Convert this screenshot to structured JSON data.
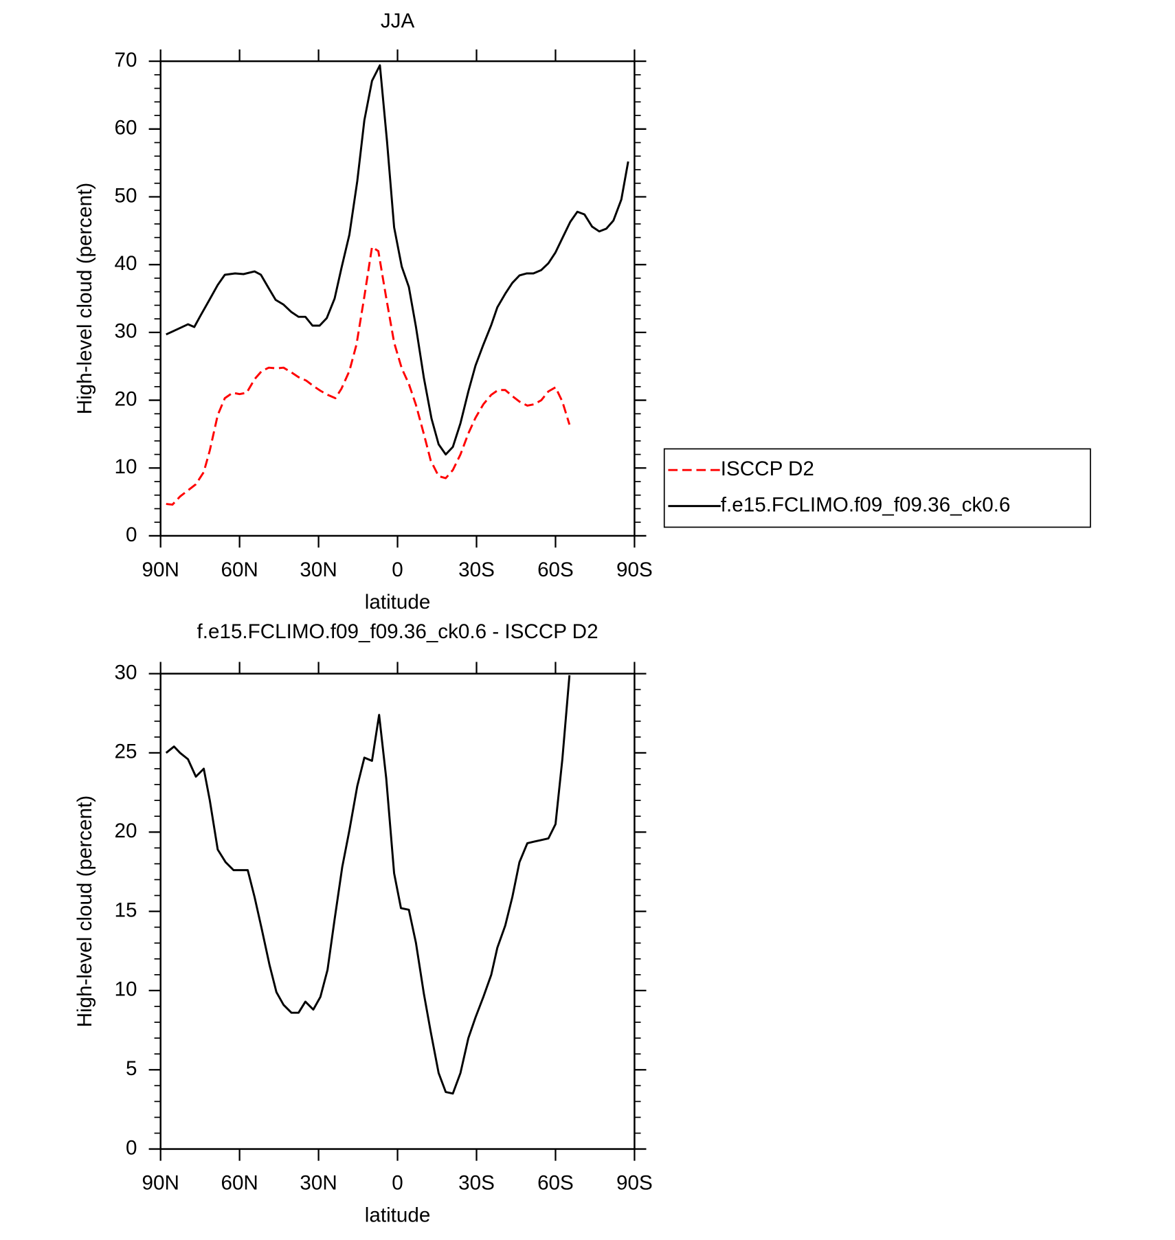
{
  "chart_data": [
    {
      "type": "line",
      "title": "JJA",
      "x_label": "latitude",
      "y_label": "High-level cloud (percent)",
      "xlim": [
        90,
        -90
      ],
      "xticks": [
        {
          "value": 90,
          "label": "90N"
        },
        {
          "value": 60,
          "label": "60N"
        },
        {
          "value": 30,
          "label": "30N"
        },
        0,
        {
          "value": -30,
          "label": "30S"
        },
        {
          "value": -60,
          "label": "60S"
        },
        {
          "value": -90,
          "label": "90S"
        }
      ],
      "ylim": [
        0,
        70
      ],
      "yticks": [
        0,
        10,
        20,
        30,
        40,
        50,
        60,
        70
      ],
      "yminor": 2,
      "legend": "right",
      "series": [
        {
          "name": "ISCCP D2",
          "color": "#ff0000",
          "dash": true,
          "x": [
            87.9,
            85.5,
            82.6,
            79.6,
            76.6,
            73.6,
            71.3,
            68.3,
            65.6,
            62.6,
            60.0,
            57.3,
            54.3,
            51.6,
            48.9,
            46.0,
            43.3,
            40.3,
            37.6,
            34.7,
            32.0,
            29.3,
            26.6,
            23.6,
            21.3,
            18.3,
            15.6,
            12.6,
            9.7,
            7.3,
            4.3,
            1.3,
            -1.6,
            -4.3,
            -7.0,
            -10.0,
            -12.6,
            -15.6,
            -18.3,
            -21.0,
            -23.9,
            -26.9,
            -29.6,
            -32.6,
            -35.6,
            -38.2,
            -40.9,
            -43.6,
            -46.3,
            -49.3,
            -51.9,
            -54.6,
            -57.3,
            -60.0,
            -62.6,
            -65.3
          ],
          "values": [
            4.7,
            4.6,
            5.8,
            6.7,
            7.6,
            9.4,
            12.6,
            17.8,
            20.3,
            21.1,
            20.9,
            21.1,
            23.1,
            24.3,
            24.8,
            24.7,
            24.8,
            24.1,
            23.4,
            22.9,
            22.1,
            21.4,
            20.8,
            20.3,
            21.7,
            24.3,
            28.2,
            35.3,
            42.6,
            42.0,
            35.1,
            28.5,
            24.7,
            22.4,
            19.3,
            15.0,
            11.1,
            8.8,
            8.5,
            9.7,
            12.0,
            15.1,
            17.4,
            19.4,
            20.8,
            21.5,
            21.5,
            20.6,
            19.8,
            19.2,
            19.4,
            20.0,
            21.3,
            21.9,
            19.8,
            16.4
          ]
        },
        {
          "name": "f.e15.FCLIMO.f09_f09.36_ck0.6",
          "color": "#000000",
          "dash": false,
          "x": [
            87.9,
            84.0,
            79.6,
            77.2,
            74.8,
            71.6,
            68.3,
            65.6,
            61.7,
            58.5,
            54.3,
            51.9,
            48.9,
            46.3,
            43.3,
            40.3,
            37.6,
            35.0,
            32.3,
            29.6,
            26.9,
            23.9,
            21.3,
            18.3,
            15.3,
            12.6,
            9.7,
            6.7,
            4.0,
            1.3,
            -1.6,
            -4.3,
            -7.0,
            -10.0,
            -12.9,
            -15.6,
            -18.3,
            -21.0,
            -23.9,
            -26.9,
            -29.6,
            -32.6,
            -35.6,
            -37.9,
            -40.9,
            -43.6,
            -46.3,
            -49.0,
            -51.6,
            -54.6,
            -57.3,
            -60.0,
            -62.6,
            -65.6,
            -68.3,
            -71.0,
            -73.9,
            -76.6,
            -79.3,
            -82.0,
            -85.0,
            -87.6
          ],
          "values": [
            29.7,
            30.4,
            31.2,
            30.8,
            32.5,
            34.7,
            37.0,
            38.5,
            38.7,
            38.6,
            39.0,
            38.5,
            36.5,
            34.8,
            34.1,
            33.0,
            32.3,
            32.3,
            31.0,
            31.0,
            32.1,
            35.0,
            39.5,
            44.4,
            52.3,
            61.3,
            67.1,
            69.4,
            58.2,
            45.5,
            39.7,
            36.7,
            30.8,
            23.3,
            17.3,
            13.5,
            12.0,
            13.1,
            16.6,
            21.3,
            25.1,
            28.2,
            31.1,
            33.7,
            35.7,
            37.3,
            38.4,
            38.7,
            38.7,
            39.2,
            40.2,
            41.8,
            43.9,
            46.3,
            47.8,
            47.4,
            45.6,
            44.9,
            45.3,
            46.5,
            49.6,
            55.2
          ]
        }
      ]
    },
    {
      "type": "line",
      "title": "f.e15.FCLIMO.f09_f09.36_ck0.6 - ISCCP D2",
      "x_label": "latitude",
      "y_label": "High-level cloud (percent)",
      "xlim": [
        90,
        -90
      ],
      "xticks": [
        {
          "value": 90,
          "label": "90N"
        },
        {
          "value": 60,
          "label": "60N"
        },
        {
          "value": 30,
          "label": "30N"
        },
        0,
        {
          "value": -30,
          "label": "30S"
        },
        {
          "value": -60,
          "label": "60S"
        },
        {
          "value": -90,
          "label": "90S"
        }
      ],
      "ylim": [
        0,
        30
      ],
      "yticks": [
        0,
        5,
        10,
        15,
        20,
        25,
        30
      ],
      "yminor": 1,
      "series": [
        {
          "color": "#000000",
          "dash": false,
          "x": [
            87.9,
            84.9,
            82.6,
            79.6,
            76.6,
            73.6,
            71.3,
            68.3,
            65.3,
            62.3,
            59.6,
            56.9,
            54.3,
            51.6,
            48.6,
            46.0,
            43.3,
            40.3,
            37.6,
            35.0,
            32.0,
            29.3,
            26.6,
            23.9,
            21.0,
            18.3,
            15.3,
            12.6,
            9.7,
            7.0,
            4.3,
            1.3,
            -1.3,
            -4.3,
            -7.0,
            -10.0,
            -12.6,
            -15.6,
            -18.3,
            -21.0,
            -23.9,
            -26.9,
            -29.6,
            -32.6,
            -35.6,
            -37.9,
            -40.9,
            -43.6,
            -46.3,
            -49.3,
            -51.9,
            -54.6,
            -57.3,
            -60.0,
            -62.6,
            -65.3
          ],
          "values": [
            25.0,
            25.4,
            25.0,
            24.6,
            23.5,
            24.0,
            22.0,
            18.9,
            18.1,
            17.6,
            17.6,
            17.6,
            15.9,
            13.9,
            11.6,
            9.9,
            9.1,
            8.6,
            8.6,
            9.3,
            8.8,
            9.6,
            11.3,
            14.5,
            17.8,
            20.1,
            22.9,
            24.7,
            24.5,
            27.4,
            23.4,
            17.4,
            15.2,
            15.1,
            13.0,
            9.8,
            7.4,
            4.8,
            3.6,
            3.5,
            4.8,
            7.0,
            8.3,
            9.6,
            11.0,
            12.7,
            14.1,
            15.9,
            18.1,
            19.3,
            19.4,
            19.5,
            19.6,
            20.5,
            24.6,
            29.9
          ]
        }
      ]
    }
  ]
}
